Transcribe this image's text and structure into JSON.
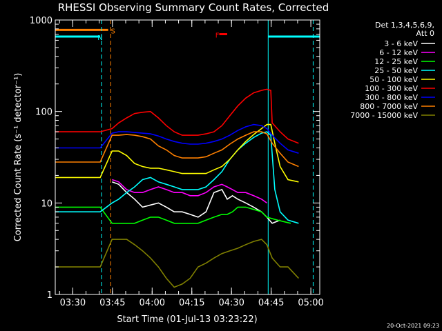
{
  "chart_data": {
    "type": "line",
    "title": "RHESSI Observing Summary Count Rates, Corrected",
    "xlabel": "Start Time (01-Jul-13 03:23:22)",
    "ylabel": "Corrected Count Rate (s⁻¹ detector⁻¹)",
    "x_unit": "minutes after 03:23:22",
    "xlim": [
      0,
      100
    ],
    "ylim": [
      1,
      1000
    ],
    "y_scale": "log",
    "y_ticks": [
      {
        "value": 1,
        "label": "1"
      },
      {
        "value": 10,
        "label": "10"
      },
      {
        "value": 100,
        "label": "100"
      },
      {
        "value": 1000,
        "label": "1000"
      }
    ],
    "x_ticks": [
      {
        "value": 6.63,
        "label": "03:30"
      },
      {
        "value": 21.63,
        "label": "03:45"
      },
      {
        "value": 36.63,
        "label": "04:00"
      },
      {
        "value": 51.63,
        "label": "04:15"
      },
      {
        "value": 66.63,
        "label": "04:30"
      },
      {
        "value": 81.63,
        "label": "04:45"
      },
      {
        "value": 96.63,
        "label": "05:00"
      }
    ],
    "legend": {
      "placement": "right",
      "header": [
        "Det 1,3,4,5,6,9,",
        "Att 0"
      ]
    },
    "series": [
      {
        "name": "3 - 6 keV",
        "color": "#ffffff",
        "points": [
          [
            21.5,
            17
          ],
          [
            24,
            16
          ],
          [
            27,
            13
          ],
          [
            30,
            11
          ],
          [
            33,
            9
          ],
          [
            36,
            9.5
          ],
          [
            39,
            10
          ],
          [
            42,
            9
          ],
          [
            45,
            8
          ],
          [
            48,
            8
          ],
          [
            51,
            7.5
          ],
          [
            54,
            7
          ],
          [
            57,
            8
          ],
          [
            60,
            13
          ],
          [
            63,
            14
          ],
          [
            65,
            11
          ],
          [
            67,
            12
          ],
          [
            69,
            11
          ],
          [
            72,
            10
          ],
          [
            75,
            9
          ],
          [
            78,
            8
          ],
          [
            80,
            7
          ],
          [
            82,
            6
          ],
          [
            85,
            6.5
          ]
        ]
      },
      {
        "name": "6 - 12 keV",
        "color": "#ff00ff",
        "points": [
          [
            21.5,
            18
          ],
          [
            24,
            17
          ],
          [
            27,
            14
          ],
          [
            30,
            13
          ],
          [
            33,
            13
          ],
          [
            36,
            14
          ],
          [
            39,
            15
          ],
          [
            42,
            14
          ],
          [
            45,
            13
          ],
          [
            48,
            13
          ],
          [
            51,
            12
          ],
          [
            54,
            12
          ],
          [
            57,
            13
          ],
          [
            60,
            15
          ],
          [
            63,
            16
          ],
          [
            65,
            15
          ],
          [
            67,
            14
          ],
          [
            69,
            13
          ],
          [
            72,
            13
          ],
          [
            75,
            12
          ],
          [
            78,
            11
          ],
          [
            80,
            10
          ]
        ]
      },
      {
        "name": "12 - 25 keV",
        "color": "#00ff00",
        "points": [
          [
            0,
            9
          ],
          [
            6,
            9
          ],
          [
            17,
            9
          ],
          [
            21.5,
            6
          ],
          [
            24,
            6
          ],
          [
            27,
            6
          ],
          [
            30,
            6
          ],
          [
            33,
            6.5
          ],
          [
            36,
            7
          ],
          [
            39,
            7
          ],
          [
            42,
            6.5
          ],
          [
            45,
            6
          ],
          [
            48,
            6
          ],
          [
            51,
            6
          ],
          [
            54,
            6
          ],
          [
            57,
            6.5
          ],
          [
            60,
            7
          ],
          [
            63,
            7.5
          ],
          [
            65,
            7.5
          ],
          [
            67,
            8
          ],
          [
            69,
            9
          ],
          [
            72,
            9
          ],
          [
            75,
            8.5
          ],
          [
            78,
            8
          ],
          [
            80,
            7
          ],
          [
            84,
            6.5
          ],
          [
            89,
            6
          ]
        ]
      },
      {
        "name": "25 - 50 keV",
        "color": "#00ffff",
        "points": [
          [
            0,
            8
          ],
          [
            6,
            8
          ],
          [
            17,
            8
          ],
          [
            21.5,
            10
          ],
          [
            24,
            11
          ],
          [
            27,
            13
          ],
          [
            30,
            15
          ],
          [
            33,
            18
          ],
          [
            36,
            19
          ],
          [
            39,
            17
          ],
          [
            42,
            16
          ],
          [
            45,
            15
          ],
          [
            48,
            14
          ],
          [
            51,
            14
          ],
          [
            54,
            14
          ],
          [
            57,
            15
          ],
          [
            60,
            18
          ],
          [
            63,
            22
          ],
          [
            66,
            30
          ],
          [
            69,
            38
          ],
          [
            72,
            45
          ],
          [
            75,
            52
          ],
          [
            78,
            58
          ],
          [
            80,
            60
          ],
          [
            81.5,
            55
          ],
          [
            83,
            14
          ],
          [
            85,
            8
          ],
          [
            88,
            6.5
          ],
          [
            92,
            6
          ]
        ]
      },
      {
        "name": "50 - 100 keV",
        "color": "#ffff00",
        "points": [
          [
            0,
            19
          ],
          [
            6,
            19
          ],
          [
            17,
            19
          ],
          [
            21.5,
            37
          ],
          [
            24,
            37
          ],
          [
            27,
            33
          ],
          [
            30,
            27
          ],
          [
            33,
            25
          ],
          [
            36,
            24
          ],
          [
            39,
            24
          ],
          [
            42,
            23
          ],
          [
            45,
            22
          ],
          [
            48,
            21
          ],
          [
            51,
            21
          ],
          [
            54,
            21
          ],
          [
            57,
            21
          ],
          [
            60,
            23
          ],
          [
            63,
            25
          ],
          [
            66,
            30
          ],
          [
            69,
            38
          ],
          [
            72,
            47
          ],
          [
            75,
            56
          ],
          [
            78,
            65
          ],
          [
            80,
            72
          ],
          [
            81.5,
            72
          ],
          [
            83,
            45
          ],
          [
            85,
            25
          ],
          [
            88,
            18
          ],
          [
            92,
            17
          ]
        ]
      },
      {
        "name": "100 - 300 keV",
        "color": "#ff0000",
        "points": [
          [
            0,
            60
          ],
          [
            6,
            60
          ],
          [
            17,
            60
          ],
          [
            21.5,
            65
          ],
          [
            24,
            75
          ],
          [
            27,
            85
          ],
          [
            30,
            95
          ],
          [
            33,
            98
          ],
          [
            36,
            100
          ],
          [
            39,
            85
          ],
          [
            42,
            70
          ],
          [
            45,
            60
          ],
          [
            48,
            55
          ],
          [
            51,
            55
          ],
          [
            54,
            55
          ],
          [
            57,
            57
          ],
          [
            60,
            60
          ],
          [
            63,
            70
          ],
          [
            66,
            90
          ],
          [
            69,
            115
          ],
          [
            72,
            140
          ],
          [
            75,
            160
          ],
          [
            78,
            170
          ],
          [
            80,
            175
          ],
          [
            81.5,
            170
          ],
          [
            82,
            75
          ],
          [
            85,
            60
          ],
          [
            88,
            50
          ],
          [
            92,
            45
          ]
        ]
      },
      {
        "name": "300 - 800 keV",
        "color": "#0000ff",
        "points": [
          [
            0,
            40
          ],
          [
            6,
            40
          ],
          [
            17,
            40
          ],
          [
            21.5,
            58
          ],
          [
            24,
            60
          ],
          [
            27,
            60
          ],
          [
            30,
            59
          ],
          [
            33,
            58
          ],
          [
            36,
            57
          ],
          [
            39,
            54
          ],
          [
            42,
            50
          ],
          [
            45,
            47
          ],
          [
            48,
            45
          ],
          [
            51,
            44
          ],
          [
            54,
            44
          ],
          [
            57,
            45
          ],
          [
            60,
            47
          ],
          [
            63,
            50
          ],
          [
            66,
            55
          ],
          [
            69,
            62
          ],
          [
            72,
            68
          ],
          [
            75,
            72
          ],
          [
            78,
            70
          ],
          [
            80,
            65
          ],
          [
            82,
            55
          ],
          [
            85,
            45
          ],
          [
            88,
            38
          ],
          [
            92,
            35
          ]
        ]
      },
      {
        "name": "800 - 7000 keV",
        "color": "#ff8000",
        "points": [
          [
            0,
            28
          ],
          [
            6,
            28
          ],
          [
            17,
            28
          ],
          [
            21.5,
            55
          ],
          [
            24,
            55
          ],
          [
            27,
            56
          ],
          [
            30,
            55
          ],
          [
            33,
            53
          ],
          [
            36,
            50
          ],
          [
            39,
            42
          ],
          [
            42,
            38
          ],
          [
            45,
            33
          ],
          [
            48,
            31
          ],
          [
            51,
            31
          ],
          [
            54,
            31
          ],
          [
            57,
            32
          ],
          [
            60,
            35
          ],
          [
            63,
            38
          ],
          [
            66,
            44
          ],
          [
            69,
            50
          ],
          [
            72,
            55
          ],
          [
            75,
            60
          ],
          [
            78,
            60
          ],
          [
            80,
            57
          ],
          [
            82,
            45
          ],
          [
            85,
            35
          ],
          [
            88,
            28
          ],
          [
            92,
            25
          ]
        ]
      },
      {
        "name": "7000 - 15000 keV",
        "color": "#808000",
        "points": [
          [
            0,
            2
          ],
          [
            6,
            2
          ],
          [
            17,
            2
          ],
          [
            21.5,
            4
          ],
          [
            24,
            4
          ],
          [
            27,
            4
          ],
          [
            30,
            3.5
          ],
          [
            33,
            3
          ],
          [
            36,
            2.5
          ],
          [
            39,
            2
          ],
          [
            42,
            1.5
          ],
          [
            45,
            1.2
          ],
          [
            48,
            1.3
          ],
          [
            51,
            1.5
          ],
          [
            54,
            2
          ],
          [
            57,
            2.2
          ],
          [
            60,
            2.5
          ],
          [
            63,
            2.8
          ],
          [
            66,
            3
          ],
          [
            69,
            3.2
          ],
          [
            72,
            3.5
          ],
          [
            75,
            3.8
          ],
          [
            78,
            4
          ],
          [
            80,
            3.5
          ],
          [
            82,
            2.5
          ],
          [
            85,
            2
          ],
          [
            88,
            2
          ],
          [
            92,
            1.5
          ]
        ]
      }
    ],
    "annotations": [
      {
        "text": "S",
        "color": "#ff8000"
      },
      {
        "text": "N",
        "color": "#00ffff"
      },
      {
        "text": "F",
        "color": "#ff0000"
      }
    ],
    "status_bars": [
      {
        "color": "#ff8000",
        "y": 780,
        "x_ranges": [
          [
            0,
            20
          ]
        ]
      },
      {
        "color": "#00ffff",
        "y": 660,
        "x_ranges": [
          [
            0,
            17
          ],
          [
            80.5,
            100
          ]
        ]
      },
      {
        "color": "#ff0000",
        "y": 700,
        "x_ranges": [
          [
            62,
            65
          ]
        ]
      }
    ],
    "vlines": [
      {
        "x": 17.5,
        "color": "#00ffff",
        "dash": true
      },
      {
        "x": 21.0,
        "color": "#ff8000",
        "dash": true
      },
      {
        "x": 80.5,
        "color": "#00ffff",
        "dash": false
      },
      {
        "x": 97.5,
        "color": "#00ffff",
        "dash": true
      }
    ]
  },
  "footer": {
    "date": "20-Oct-2021 09:23"
  }
}
